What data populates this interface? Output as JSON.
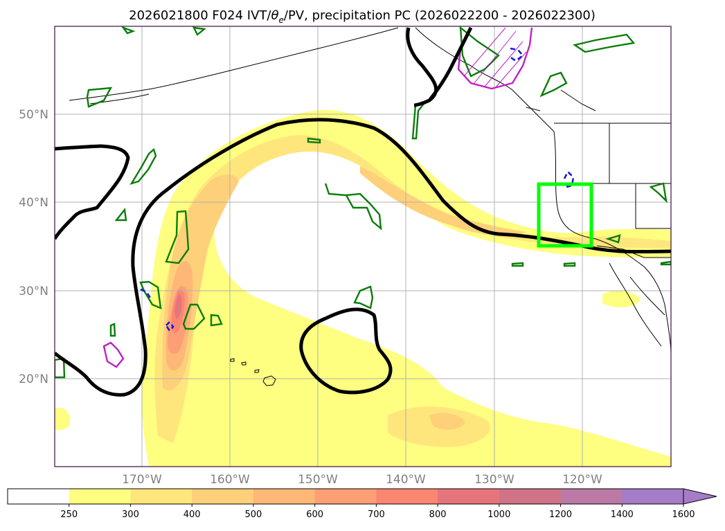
{
  "title": "2026021800 F024 IVT/θe/PV, precipitation PC (2026022200 - 2026022300)",
  "title_parts": {
    "prefix": "2026021800 F024 IVT/",
    "theta": "θ",
    "theta_sub": "e",
    "suffix": "/PV, precipitation PC (2026022200 - 2026022300)"
  },
  "map": {
    "lon_range": [
      -180,
      -110
    ],
    "lat_range": [
      10,
      60
    ],
    "lat_ticks": [
      {
        "value": 20,
        "label": "20°N"
      },
      {
        "value": 30,
        "label": "30°N"
      },
      {
        "value": 40,
        "label": "40°N"
      },
      {
        "value": 50,
        "label": "50°N"
      }
    ],
    "lon_ticks": [
      {
        "value": -170,
        "label": "170°W"
      },
      {
        "value": -160,
        "label": "160°W"
      },
      {
        "value": -150,
        "label": "150°W"
      },
      {
        "value": -140,
        "label": "140°W"
      },
      {
        "value": -130,
        "label": "130°W"
      },
      {
        "value": -120,
        "label": "120°W"
      }
    ],
    "gridlines": true,
    "highlight_box": {
      "lon": [
        -125,
        -119
      ],
      "lat": [
        35,
        42
      ],
      "color": "#00ff00"
    }
  },
  "colorbar": {
    "levels": [
      250,
      300,
      400,
      500,
      600,
      700,
      800,
      1000,
      1200,
      1400,
      1600
    ],
    "colors": [
      "#ffffff",
      "#fefe80",
      "#fee67d",
      "#fed07a",
      "#fdb777",
      "#fd9f74",
      "#fb8671",
      "#e6757b",
      "#d07387",
      "#bb7aa5",
      "#a57cc8"
    ],
    "extend": "max"
  }
}
